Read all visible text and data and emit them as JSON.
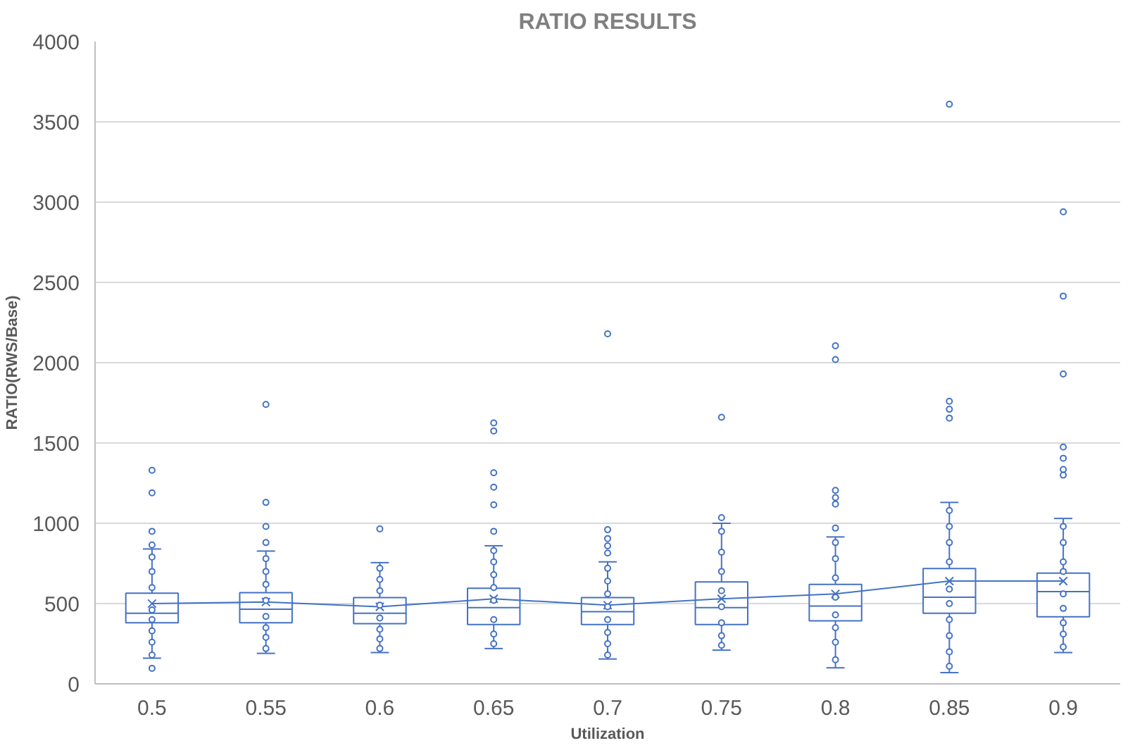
{
  "chart_data": {
    "type": "box",
    "title": "RATIO RESULTS",
    "xlabel": "Utilization",
    "ylabel": "RATIO(RWS/Base)",
    "categories": [
      "0.5",
      "0.55",
      "0.6",
      "0.65",
      "0.7",
      "0.75",
      "0.8",
      "0.85",
      "0.9"
    ],
    "color": "#4472c4",
    "ylim": [
      0,
      4000
    ],
    "yticks": [
      0,
      500,
      1000,
      1500,
      2000,
      2500,
      3000,
      3500,
      4000
    ],
    "grid": "y",
    "boxes": [
      {
        "low": 160,
        "q1": 380,
        "median": 440,
        "q3": 565,
        "high": 840,
        "mean": 500,
        "outliers": [
          97,
          865,
          950,
          1190,
          1330
        ]
      },
      {
        "low": 190,
        "q1": 380,
        "median": 465,
        "q3": 568,
        "high": 827,
        "mean": 510,
        "outliers": [
          880,
          980,
          1130,
          1740
        ]
      },
      {
        "low": 195,
        "q1": 375,
        "median": 440,
        "q3": 537,
        "high": 755,
        "mean": 480,
        "outliers": [
          965
        ]
      },
      {
        "low": 220,
        "q1": 370,
        "median": 475,
        "q3": 595,
        "high": 860,
        "mean": 530,
        "outliers": [
          950,
          1115,
          1225,
          1315,
          1575,
          1625
        ]
      },
      {
        "low": 155,
        "q1": 370,
        "median": 450,
        "q3": 537,
        "high": 760,
        "mean": 490,
        "outliers": [
          815,
          860,
          905,
          960,
          2180
        ]
      },
      {
        "low": 210,
        "q1": 370,
        "median": 475,
        "q3": 635,
        "high": 1000,
        "mean": 530,
        "outliers": [
          1035,
          1660
        ]
      },
      {
        "low": 100,
        "q1": 393,
        "median": 485,
        "q3": 620,
        "high": 915,
        "mean": 560,
        "outliers": [
          970,
          1120,
          1160,
          1205,
          2020,
          2105
        ]
      },
      {
        "low": 70,
        "q1": 440,
        "median": 540,
        "q3": 718,
        "high": 1130,
        "mean": 640,
        "outliers": [
          1655,
          1710,
          1760,
          3610
        ]
      },
      {
        "low": 195,
        "q1": 418,
        "median": 575,
        "q3": 690,
        "high": 1030,
        "mean": 640,
        "outliers": [
          1300,
          1335,
          1405,
          1475,
          1930,
          2415,
          2940
        ]
      }
    ],
    "series": [
      {
        "type": "line",
        "color": "#4472c4",
        "values": [
          500,
          510,
          480,
          530,
          490,
          530,
          560,
          640,
          640
        ]
      },
      {
        "type": "scatter",
        "color": "#4472c4",
        "marker": "circle",
        "x": [
          "0.5",
          "0.5",
          "0.5",
          "0.5",
          "0.5",
          "0.5",
          "0.5",
          "0.5",
          "0.55",
          "0.55",
          "0.55",
          "0.55",
          "0.55",
          "0.55",
          "0.55",
          "0.55",
          "0.6",
          "0.6",
          "0.6",
          "0.6",
          "0.6",
          "0.6",
          "0.6",
          "0.6",
          "0.65",
          "0.65",
          "0.65",
          "0.65",
          "0.65",
          "0.65",
          "0.65",
          "0.65",
          "0.7",
          "0.7",
          "0.7",
          "0.7",
          "0.7",
          "0.7",
          "0.7",
          "0.7",
          "0.75",
          "0.75",
          "0.75",
          "0.75",
          "0.75",
          "0.75",
          "0.75",
          "0.75",
          "0.8",
          "0.8",
          "0.8",
          "0.8",
          "0.8",
          "0.8",
          "0.8",
          "0.8",
          "0.85",
          "0.85",
          "0.85",
          "0.85",
          "0.85",
          "0.85",
          "0.85",
          "0.85",
          "0.85",
          "0.85",
          "0.9",
          "0.9",
          "0.9",
          "0.9",
          "0.9",
          "0.9",
          "0.9",
          "0.9",
          "0.9"
        ],
        "values": [
          180,
          260,
          330,
          400,
          460,
          600,
          700,
          790,
          220,
          290,
          350,
          420,
          520,
          620,
          700,
          780,
          220,
          280,
          340,
          410,
          490,
          580,
          650,
          720,
          250,
          310,
          400,
          520,
          600,
          680,
          760,
          830,
          180,
          250,
          320,
          400,
          480,
          560,
          640,
          720,
          240,
          300,
          380,
          480,
          580,
          700,
          820,
          950,
          150,
          260,
          350,
          430,
          540,
          660,
          780,
          880,
          110,
          200,
          300,
          400,
          500,
          590,
          760,
          880,
          980,
          1080,
          230,
          310,
          380,
          470,
          560,
          700,
          760,
          880,
          980
        ]
      }
    ]
  }
}
